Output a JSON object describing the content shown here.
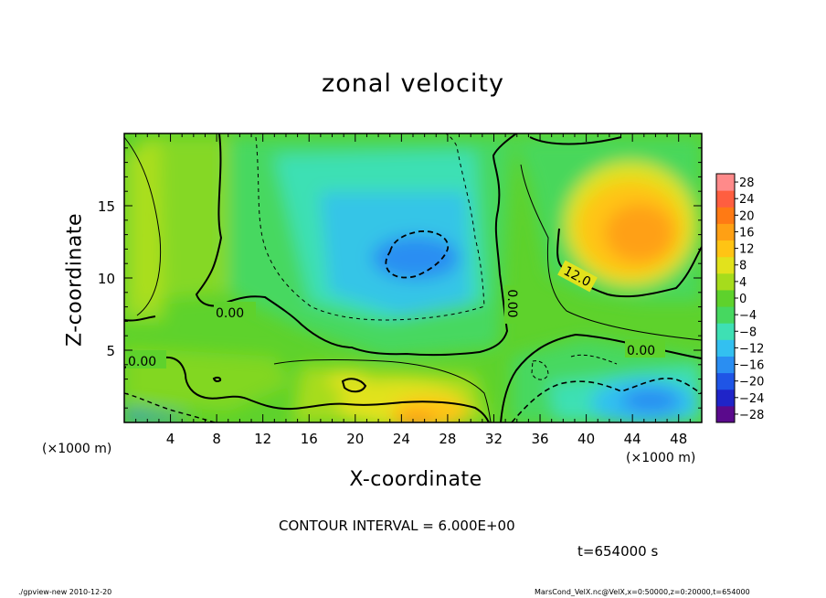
{
  "chart_data": {
    "type": "heatmap",
    "title": "zonal velocity",
    "xlabel": "X-coordinate",
    "ylabel": "Z-coordinate",
    "xunit_left": "(×1000 m)",
    "xunit_right": "(×1000 m)",
    "xlim": [
      0,
      50
    ],
    "ylim": [
      0,
      20
    ],
    "xticks": [
      4,
      8,
      12,
      16,
      20,
      24,
      28,
      32,
      36,
      40,
      44,
      48
    ],
    "yticks": [
      5,
      10,
      15
    ],
    "colorbar": {
      "levels": [
        -28,
        -24,
        -20,
        -16,
        -12,
        -8,
        -4,
        0,
        4,
        8,
        12,
        16,
        20,
        24,
        28
      ],
      "tick_labels": [
        "28",
        "24",
        "20",
        "16",
        "12",
        "8",
        "4",
        "0",
        "−4",
        "−8",
        "−12",
        "−16",
        "−20",
        "−24",
        "−28"
      ],
      "colors": [
        "#5a0a8c",
        "#1f24c8",
        "#1f55e6",
        "#2a8ef2",
        "#33c0f0",
        "#3ee0b4",
        "#46d860",
        "#5ed22c",
        "#a6dc1c",
        "#e2e21c",
        "#ffc414",
        "#ffa014",
        "#ff7a14",
        "#ff5e40",
        "#ff8a8a"
      ]
    },
    "contour_labels": [
      "0.00",
      "0.00",
      "0.00",
      "0.00",
      "12.0"
    ],
    "contour_interval_label": "CONTOUR INTERVAL = 6.000E+00",
    "time_label": "t=654000 s",
    "features": [
      {
        "kind": "jet",
        "sign": "negative",
        "x": [
          20,
          29
        ],
        "z": [
          9,
          14
        ],
        "peak": -14
      },
      {
        "kind": "jet",
        "sign": "positive",
        "x": [
          38,
          49
        ],
        "z": [
          9,
          18
        ],
        "peak": 15
      },
      {
        "kind": "jet",
        "sign": "positive",
        "x": [
          18,
          30
        ],
        "z": [
          0,
          4
        ],
        "peak": 12
      },
      {
        "kind": "jet",
        "sign": "negative",
        "x": [
          37,
          49
        ],
        "z": [
          0,
          4
        ],
        "peak": -14
      }
    ]
  },
  "footer": {
    "left": "./gpview-new  2010-12-20",
    "right": "MarsCond_VelX.nc@VelX,x=0:50000,z=0:20000,t=654000"
  }
}
